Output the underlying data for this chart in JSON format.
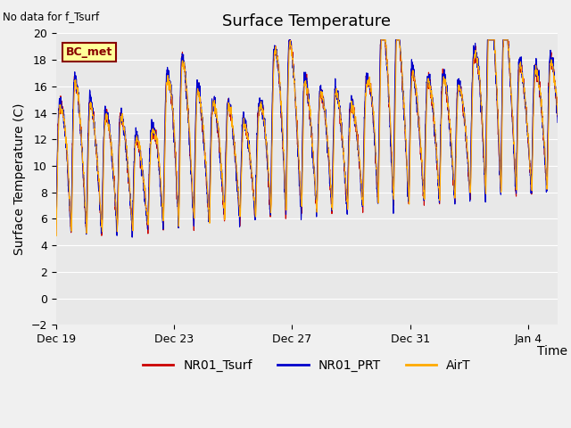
{
  "title": "Surface Temperature",
  "ylabel": "Surface Temperature (C)",
  "xlabel": "Time",
  "top_left_text": "No data for f_Tsurf",
  "bc_met_label": "BC_met",
  "ylim": [
    -2,
    20
  ],
  "yticks": [
    -2,
    0,
    2,
    4,
    6,
    8,
    10,
    12,
    14,
    16,
    18,
    20
  ],
  "xtick_labels": [
    "Dec 19",
    "Dec 23",
    "Dec 27",
    "Dec 31",
    "Jan 4"
  ],
  "xtick_positions": [
    0,
    4,
    8,
    12,
    16
  ],
  "legend_entries": [
    "NR01_Tsurf",
    "NR01_PRT",
    "AirT"
  ],
  "line_colors": [
    "#cc0000",
    "#0000cc",
    "#ffaa00"
  ],
  "fig_bg_color": "#f0f0f0",
  "plot_bg_color": "#e8e8e8",
  "grid_color": "#ffffff",
  "title_fontsize": 13,
  "axis_label_fontsize": 10,
  "tick_fontsize": 9,
  "legend_fontsize": 10,
  "bc_met_bg": "#ffff99",
  "bc_met_border": "#880000",
  "num_days": 17,
  "samples_per_day": 144
}
